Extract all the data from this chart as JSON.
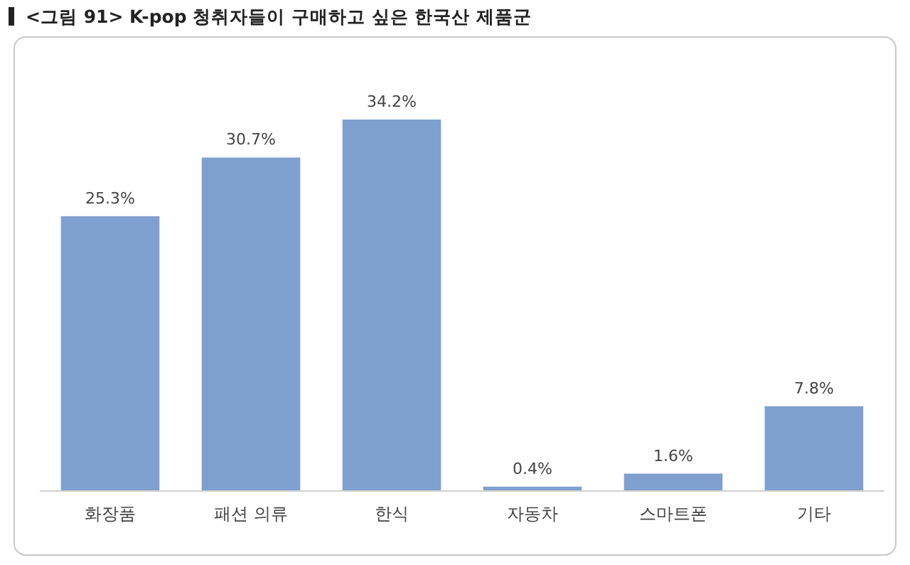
{
  "chart_data": {
    "type": "bar",
    "title": "<그림 91> K-pop 청취자들이 구매하고 싶은 한국산 제품군",
    "categories": [
      "화장품",
      "패션 의류",
      "한식",
      "자동차",
      "스마트폰",
      "기타"
    ],
    "values": [
      25.3,
      30.7,
      34.2,
      0.4,
      1.6,
      7.8
    ],
    "value_labels": [
      "25.3%",
      "30.7%",
      "34.2%",
      "0.4%",
      "1.6%",
      "7.8%"
    ],
    "color": "#7f9fcf"
  }
}
